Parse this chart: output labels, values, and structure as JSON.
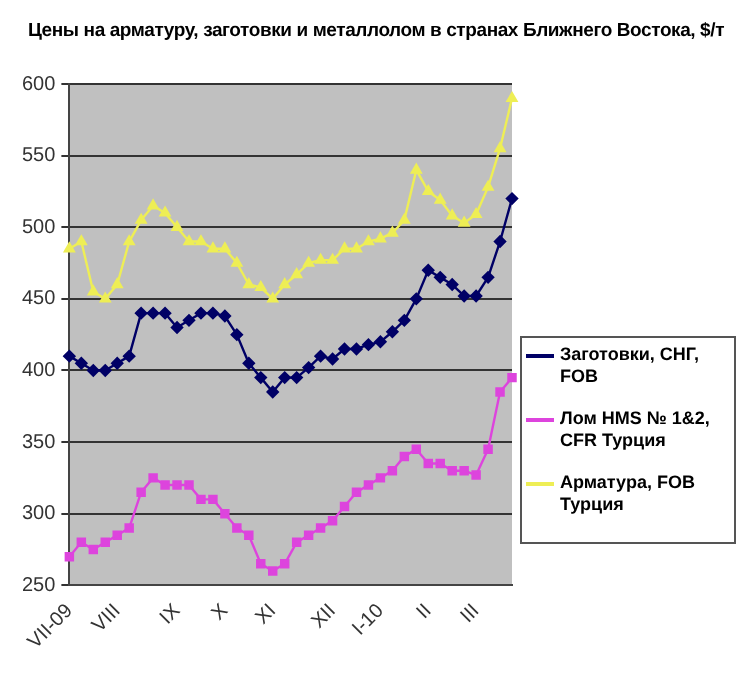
{
  "chart_data": {
    "type": "line",
    "title": "Цены на арматуру, заготовки и металлолом в странах Ближнего Востока, $/т",
    "categories": [
      "VII-09",
      null,
      null,
      null,
      "VIII",
      null,
      null,
      null,
      null,
      "IX",
      null,
      null,
      null,
      "X",
      null,
      null,
      null,
      "XI",
      null,
      null,
      null,
      null,
      "XII",
      null,
      null,
      null,
      "I-10",
      null,
      null,
      null,
      "II",
      null,
      null,
      null,
      "III",
      null,
      null,
      null
    ],
    "series": [
      {
        "name": "Заготовки, СНГ, FOB",
        "color": "#000066",
        "marker": "diamond",
        "values": [
          410,
          405,
          400,
          400,
          405,
          410,
          440,
          440,
          440,
          430,
          435,
          440,
          440,
          438,
          425,
          405,
          395,
          385,
          395,
          395,
          402,
          410,
          408,
          415,
          415,
          418,
          420,
          427,
          435,
          450,
          470,
          465,
          460,
          452,
          452,
          465,
          490,
          520
        ]
      },
      {
        "name": "Лом HMS № 1&2, CFR Турция",
        "color": "#dd44dd",
        "marker": "square",
        "values": [
          270,
          280,
          275,
          280,
          285,
          290,
          315,
          325,
          320,
          320,
          320,
          310,
          310,
          300,
          290,
          285,
          265,
          260,
          265,
          280,
          285,
          290,
          295,
          305,
          315,
          320,
          325,
          330,
          340,
          345,
          335,
          335,
          330,
          330,
          327,
          345,
          385,
          395
        ]
      },
      {
        "name": "Арматура, FOB Турция",
        "color": "#eeee55",
        "marker": "triangle",
        "values": [
          485,
          490,
          455,
          450,
          460,
          490,
          505,
          515,
          510,
          500,
          490,
          490,
          485,
          485,
          475,
          460,
          458,
          450,
          460,
          467,
          475,
          477,
          477,
          485,
          485,
          490,
          492,
          496,
          505,
          540,
          525,
          519,
          508,
          503,
          509,
          528,
          555,
          590
        ]
      }
    ],
    "ylim": [
      250,
      600
    ],
    "yticks": [
      250,
      300,
      350,
      400,
      450,
      500,
      550,
      600
    ],
    "grid": "y",
    "legend": "right"
  }
}
